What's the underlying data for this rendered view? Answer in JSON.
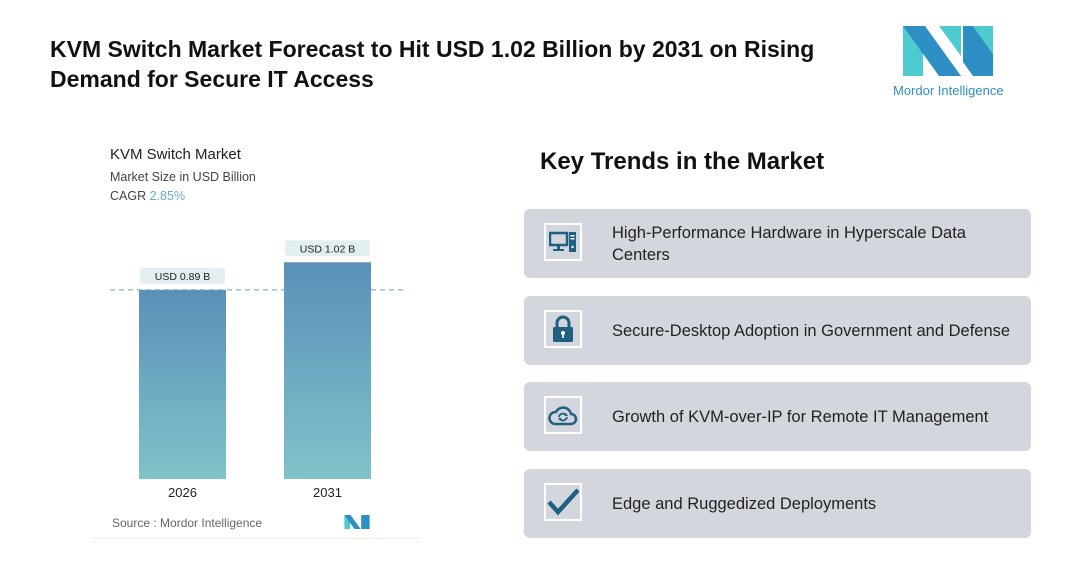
{
  "header": {
    "title": "KVM Switch Market Forecast to Hit USD 1.02 Billion by 2031 on Rising Demand for Secure IT Access",
    "logo_text": "Mordor Intelligence"
  },
  "chart_data": {
    "type": "bar",
    "title": "KVM Switch Market",
    "subtitle": "Market Size in USD Billion",
    "cagr_label": "CAGR",
    "cagr_value": "2.85%",
    "categories": [
      "2026",
      "2031"
    ],
    "values": [
      0.89,
      1.02
    ],
    "data_labels": [
      "USD 0.89 B",
      "USD 1.02 B"
    ],
    "source": "Source :  Mordor Intelligence",
    "colors": {
      "bar_top": "#5b8fb8",
      "bar_bottom": "#7fc3c9",
      "label_bg": "#e3eef1",
      "dash": "#6aa0c6"
    }
  },
  "trends": {
    "title": "Key Trends in the Market",
    "items": [
      {
        "icon": "computer-icon",
        "label": "High-Performance Hardware in Hyperscale Data Centers"
      },
      {
        "icon": "lock-icon",
        "label": "Secure-Desktop Adoption in Government and Defense"
      },
      {
        "icon": "cloud-sync-icon",
        "label": "Growth of KVM-over-IP for Remote IT Management"
      },
      {
        "icon": "checkmark-icon",
        "label": "Edge and Ruggedized Deployments"
      }
    ]
  },
  "colors": {
    "icon": "#1f5f80",
    "card_bg": "#d3d7dd"
  }
}
